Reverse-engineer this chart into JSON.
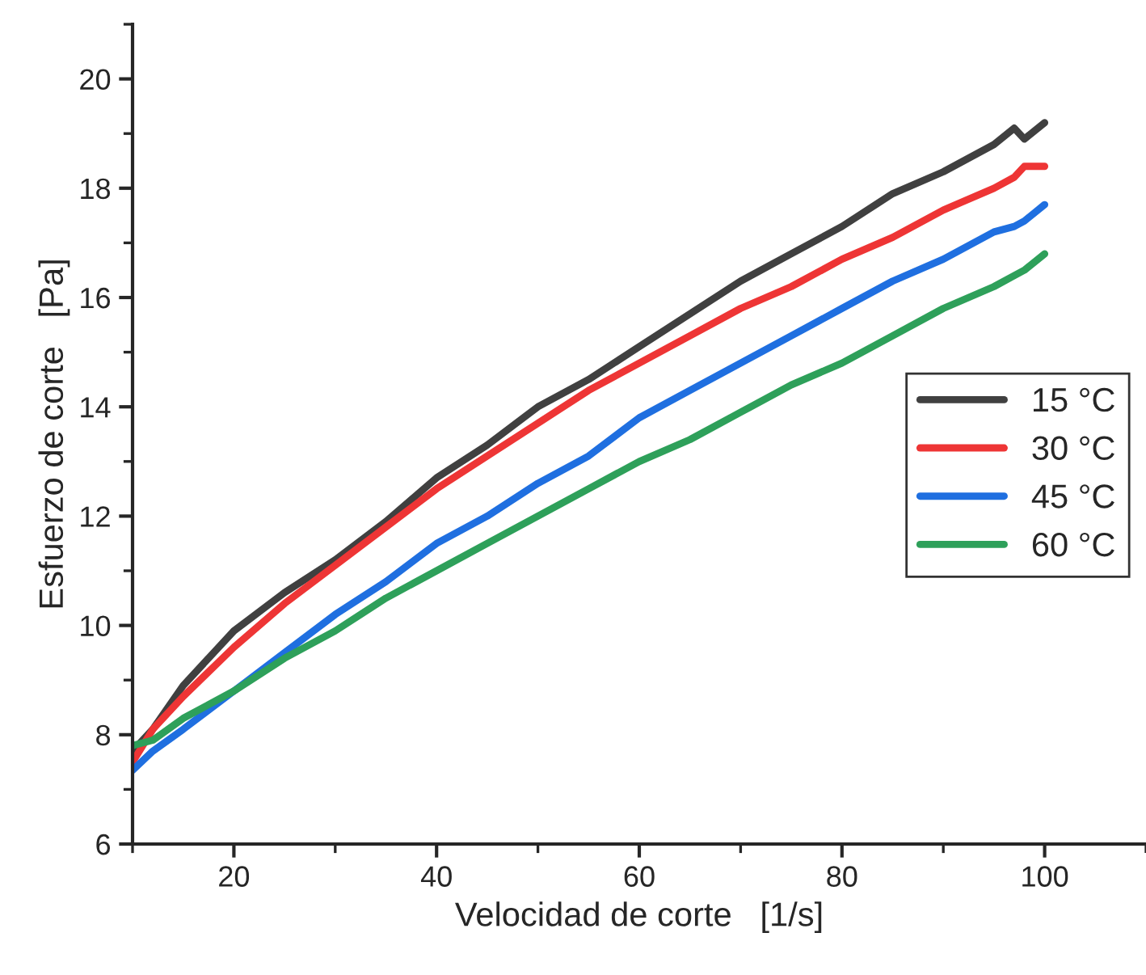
{
  "chart_data": {
    "type": "line",
    "xlabel": "Velocidad de corte   [1/s]",
    "ylabel": "Esfuerzo de corte   [Pa]",
    "xlim": [
      10,
      110
    ],
    "xticks": [
      20,
      40,
      60,
      80,
      100
    ],
    "ylim": [
      6,
      21
    ],
    "yticks": [
      6,
      8,
      10,
      12,
      14,
      16,
      18,
      20
    ],
    "grid": false,
    "legend": "right",
    "marker": "none",
    "line_style": "solid",
    "x": [
      10,
      12,
      15,
      20,
      25,
      30,
      35,
      40,
      45,
      50,
      55,
      60,
      65,
      70,
      75,
      80,
      85,
      90,
      95,
      97,
      98,
      100
    ],
    "series": [
      {
        "name": "15 °C",
        "color": "#404040",
        "values": [
          7.7,
          8.1,
          8.9,
          9.9,
          10.6,
          11.2,
          11.9,
          12.7,
          13.3,
          14.0,
          14.5,
          15.1,
          15.7,
          16.3,
          16.8,
          17.3,
          17.9,
          18.3,
          18.8,
          19.1,
          18.9,
          19.2
        ]
      },
      {
        "name": "30 °C",
        "color": "#ee3535",
        "values": [
          7.5,
          8.1,
          8.7,
          9.6,
          10.4,
          11.1,
          11.8,
          12.5,
          13.1,
          13.7,
          14.3,
          14.8,
          15.3,
          15.8,
          16.2,
          16.7,
          17.1,
          17.6,
          18.0,
          18.2,
          18.4,
          18.4
        ]
      },
      {
        "name": "45 °C",
        "color": "#1f6fe0",
        "values": [
          7.35,
          7.7,
          8.1,
          8.8,
          9.5,
          10.2,
          10.8,
          11.5,
          12.0,
          12.6,
          13.1,
          13.8,
          14.3,
          14.8,
          15.3,
          15.8,
          16.3,
          16.7,
          17.2,
          17.3,
          17.4,
          17.7
        ]
      },
      {
        "name": "60 °C",
        "color": "#2ea05a",
        "values": [
          7.8,
          7.9,
          8.3,
          8.8,
          9.4,
          9.9,
          10.5,
          11.0,
          11.5,
          12.0,
          12.5,
          13.0,
          13.4,
          13.9,
          14.4,
          14.8,
          15.3,
          15.8,
          16.2,
          16.4,
          16.5,
          16.8
        ]
      }
    ]
  }
}
